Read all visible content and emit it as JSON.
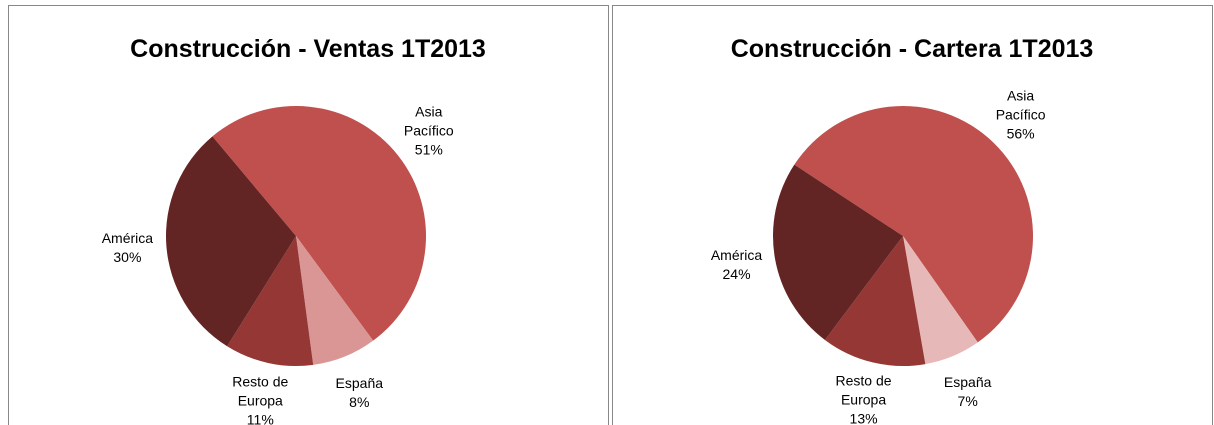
{
  "chart_data": [
    {
      "type": "pie",
      "title": "Construcción - Ventas 1T2013",
      "categories": [
        "Asia Pacífico",
        "España",
        "Resto de Europa",
        "América"
      ],
      "values": [
        51,
        8,
        11,
        30
      ],
      "value_labels": [
        "51%",
        "8%",
        "11%",
        "30%"
      ],
      "colors": [
        "#c0504d",
        "#d99694",
        "#953735",
        "#632523"
      ]
    },
    {
      "type": "pie",
      "title": "Construcción - Cartera 1T2013",
      "categories": [
        "Asia Pacífico",
        "España",
        "Resto de Europa",
        "América"
      ],
      "values": [
        56,
        7,
        13,
        24
      ],
      "value_labels": [
        "56%",
        "7%",
        "13%",
        "24%"
      ],
      "colors": [
        "#c0504d",
        "#e6b9b8",
        "#953735",
        "#632523"
      ]
    }
  ]
}
